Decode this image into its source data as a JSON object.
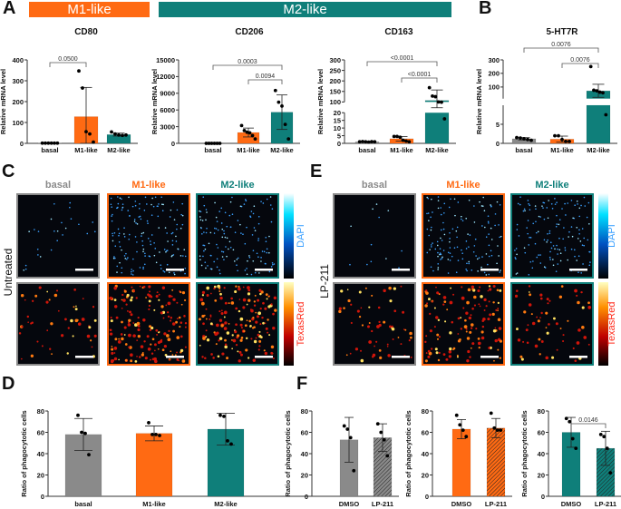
{
  "panel_labels": {
    "A": "A",
    "B": "B",
    "C": "C",
    "D": "D",
    "E": "E",
    "F": "F"
  },
  "banners": {
    "m1": "M1-like",
    "m2": "M2-like"
  },
  "colors": {
    "basal": "#8a8a8a",
    "m1": "#ff6a13",
    "m2": "#0f7f7a",
    "dapi": "#3aa0ff",
    "texasred": "#ff2a1a"
  },
  "microscopy": {
    "C": {
      "row_label": "Untreated",
      "columns": [
        "basal",
        "M1-like",
        "M2-like"
      ],
      "channels": [
        "DAPI",
        "TexasRed"
      ]
    },
    "E": {
      "row_label": "LP-211",
      "columns": [
        "basal",
        "M1-like",
        "M2-like"
      ],
      "channels": [
        "DAPI",
        "TexasRed"
      ]
    }
  },
  "chart_data": [
    {
      "id": "cd80",
      "type": "bar",
      "title": "CD80",
      "ylabel": "Relative mRNA level",
      "categories": [
        "basal",
        "M1-like",
        "M2-like"
      ],
      "values": [
        2,
        128,
        42
      ],
      "sd": [
        1,
        140,
        7
      ],
      "points": [
        [
          1,
          1,
          1,
          1,
          1,
          1
        ],
        [
          347,
          265,
          56,
          45,
          6
        ],
        [
          55,
          45,
          40,
          38,
          40
        ]
      ],
      "ticks": [
        0,
        100,
        200,
        300,
        400
      ],
      "ylim": [
        0,
        400
      ],
      "comparisons": [
        {
          "from": 0,
          "to": 1,
          "label": "0.0500"
        }
      ]
    },
    {
      "id": "cd206",
      "type": "bar",
      "title": "CD206",
      "ylabel": "Relative mRNA level",
      "categories": [
        "basal",
        "M1-like",
        "M2-like"
      ],
      "values": [
        1,
        1950,
        5600
      ],
      "sd": [
        1,
        800,
        3100
      ],
      "points": [
        [
          1,
          1,
          1,
          1,
          1,
          1
        ],
        [
          3200,
          2300,
          2000,
          1900,
          1400,
          800
        ],
        [
          9500,
          7400,
          6700,
          3400,
          800
        ]
      ],
      "ticks": [
        0,
        3000,
        6000,
        9000,
        12000,
        15000
      ],
      "ylim": [
        0,
        15000
      ],
      "comparisons": [
        {
          "from": 0,
          "to": 2,
          "label": "0.0003"
        },
        {
          "from": 1,
          "to": 2,
          "label": "0.0094"
        }
      ]
    },
    {
      "id": "cd163",
      "type": "bar",
      "title": "CD163",
      "ylabel": "Relative mRNA level",
      "categories": [
        "basal",
        "M1-like",
        "M2-like"
      ],
      "values": [
        1,
        3,
        107
      ],
      "sd": [
        0.3,
        1.5,
        50
      ],
      "points": [
        [
          1,
          1.2,
          1,
          0.8,
          1.1,
          1
        ],
        [
          4.5,
          4.5,
          4,
          2,
          1.5,
          1
        ],
        [
          168,
          128,
          125,
          100,
          98,
          16
        ]
      ],
      "ticks": [
        0,
        5,
        10,
        15,
        20,
        100,
        150,
        200,
        250,
        300
      ],
      "ylim": [
        0,
        300
      ],
      "axis_break": [
        20,
        100
      ],
      "comparisons": [
        {
          "from": 0,
          "to": 2,
          "label": "<0.0001"
        },
        {
          "from": 1,
          "to": 2,
          "label": "<0.0001"
        }
      ]
    },
    {
      "id": "5ht7r",
      "type": "bar",
      "title": "5-HT7R",
      "ylabel": "Relative mRNA level",
      "categories": [
        "basal",
        "M1-like",
        "M2-like"
      ],
      "values": [
        1.2,
        1.1,
        70
      ],
      "sd": [
        0.3,
        0.8,
        50
      ],
      "points": [
        [
          1.5,
          1.4,
          1.2,
          1,
          0.8
        ],
        [
          2,
          2,
          1,
          0.5,
          0.5
        ],
        [
          250,
          75,
          70,
          60,
          55,
          7.5
        ]
      ],
      "ticks": [
        0,
        5,
        10,
        100,
        200,
        300
      ],
      "ylim": [
        0,
        300
      ],
      "axis_break": [
        10,
        10
      ],
      "comparisons": [
        {
          "from": 0,
          "to": 2,
          "label": "0.0076"
        },
        {
          "from": 1,
          "to": 2,
          "label": "0.0076"
        }
      ]
    },
    {
      "id": "phago-d",
      "type": "bar",
      "title": "",
      "ylabel": "Ratio of phagocytotic cells",
      "categories": [
        "basal",
        "M1-like",
        "M2-like"
      ],
      "values": [
        58,
        59,
        63
      ],
      "sd": [
        15,
        7,
        15
      ],
      "points": [
        [
          76,
          60,
          59,
          39
        ],
        [
          69,
          58,
          58,
          57
        ],
        [
          76,
          75,
          52,
          49
        ]
      ],
      "ticks": [
        0,
        20,
        40,
        60,
        80
      ],
      "ylim": [
        0,
        80
      ],
      "comparisons": []
    },
    {
      "id": "phago-f-basal",
      "type": "bar",
      "title": "",
      "ylabel": "Ratio of phagocytotic cells",
      "categories": [
        "DMSO",
        "LP-211"
      ],
      "values": [
        53,
        55
      ],
      "sd": [
        21,
        13
      ],
      "points": [
        [
          66,
          63,
          55,
          24
        ],
        [
          68,
          60,
          53,
          38
        ]
      ],
      "ticks": [
        0,
        20,
        40,
        60,
        80
      ],
      "ylim": [
        0,
        80
      ],
      "comparisons": []
    },
    {
      "id": "phago-f-m1",
      "type": "bar",
      "title": "",
      "ylabel": "Ratio of phagocytotic cells",
      "categories": [
        "DMSO",
        "LP-211"
      ],
      "values": [
        63,
        64
      ],
      "sd": [
        9,
        9
      ],
      "points": [
        [
          76,
          67,
          62,
          56
        ],
        [
          78,
          64,
          62,
          62
        ]
      ],
      "ticks": [
        0,
        20,
        40,
        60,
        80
      ],
      "ylim": [
        0,
        80
      ],
      "comparisons": []
    },
    {
      "id": "phago-f-m2",
      "type": "bar",
      "title": "",
      "ylabel": "Ratio of phagocytotic cells",
      "categories": [
        "DMSO",
        "LP-211"
      ],
      "values": [
        60,
        45
      ],
      "sd": [
        14,
        16
      ],
      "points": [
        [
          73,
          70,
          54,
          45
        ],
        [
          58,
          56,
          45,
          22
        ]
      ],
      "ticks": [
        0,
        20,
        40,
        60,
        80
      ],
      "ylim": [
        0,
        80
      ],
      "comparisons": [
        {
          "from": 0,
          "to": 1,
          "label": "0.0146"
        }
      ]
    }
  ]
}
